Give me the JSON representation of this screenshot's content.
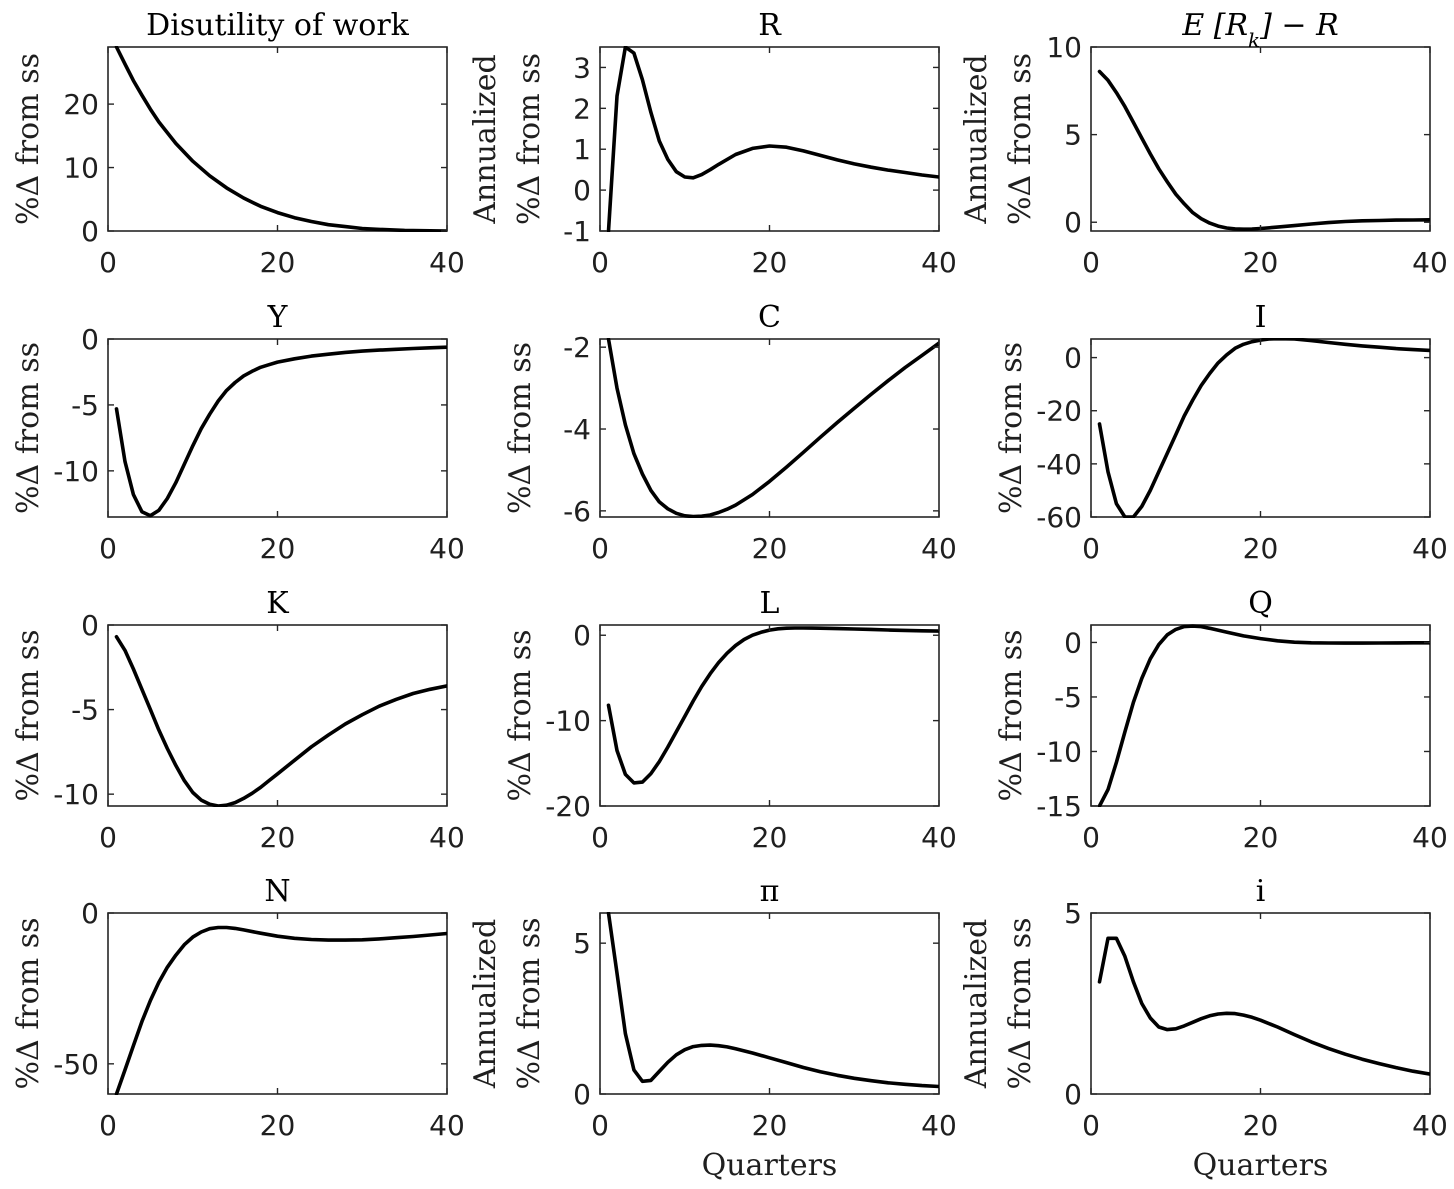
{
  "chart_data": [
    {
      "type": "line",
      "title": "Disutility of work",
      "ylabel": [
        "%Δ from ss"
      ],
      "xlabel": "",
      "xlim": [
        0,
        40
      ],
      "ylim": [
        0,
        29
      ],
      "xticks": [
        0,
        20,
        40
      ],
      "yticks": [
        0,
        10,
        20
      ],
      "x": [
        1,
        2,
        3,
        4,
        5,
        6,
        8,
        10,
        12,
        14,
        16,
        18,
        20,
        22,
        24,
        26,
        28,
        30,
        32,
        35,
        38,
        40
      ],
      "y": [
        29,
        26.3,
        23.7,
        21.4,
        19.2,
        17.2,
        13.8,
        11.0,
        8.7,
        6.8,
        5.2,
        3.9,
        2.9,
        2.1,
        1.5,
        1.0,
        0.7,
        0.4,
        0.25,
        0.1,
        0.03,
        0.0
      ]
    },
    {
      "type": "line",
      "title": "R",
      "ylabel": [
        "Annualized",
        "%Δ from ss"
      ],
      "xlabel": "",
      "xlim": [
        0,
        40
      ],
      "ylim": [
        -1,
        3.5
      ],
      "xticks": [
        0,
        20,
        40
      ],
      "yticks": [
        -1,
        0,
        1,
        2,
        3
      ],
      "x": [
        1,
        2,
        3,
        4,
        5,
        6,
        7,
        8,
        9,
        10,
        11,
        12,
        13,
        14,
        16,
        18,
        20,
        22,
        24,
        26,
        28,
        30,
        32,
        34,
        36,
        38,
        40
      ],
      "y": [
        -1,
        2.3,
        3.5,
        3.35,
        2.7,
        1.9,
        1.2,
        0.75,
        0.45,
        0.32,
        0.3,
        0.38,
        0.5,
        0.63,
        0.87,
        1.02,
        1.08,
        1.05,
        0.96,
        0.85,
        0.74,
        0.64,
        0.56,
        0.49,
        0.43,
        0.37,
        0.32
      ]
    },
    {
      "type": "line",
      "title": "E[R_k] − R",
      "ylabel": [
        "Annualized",
        "%Δ from ss"
      ],
      "xlabel": "",
      "xlim": [
        0,
        40
      ],
      "ylim": [
        -0.5,
        10
      ],
      "xticks": [
        0,
        20,
        40
      ],
      "yticks": [
        0,
        5,
        10
      ],
      "x": [
        1,
        2,
        3,
        4,
        5,
        6,
        7,
        8,
        9,
        10,
        11,
        12,
        13,
        14,
        15,
        16,
        17,
        18,
        19,
        20,
        22,
        24,
        26,
        28,
        30,
        32,
        34,
        36,
        38,
        40
      ],
      "y": [
        8.6,
        8.1,
        7.4,
        6.6,
        5.7,
        4.8,
        3.9,
        3.05,
        2.3,
        1.6,
        1.05,
        0.55,
        0.2,
        -0.05,
        -0.22,
        -0.33,
        -0.38,
        -0.4,
        -0.39,
        -0.36,
        -0.28,
        -0.19,
        -0.1,
        -0.02,
        0.04,
        0.08,
        0.1,
        0.12,
        0.13,
        0.14
      ]
    },
    {
      "type": "line",
      "title": "Y",
      "ylabel": [
        "%Δ from ss"
      ],
      "xlabel": "",
      "xlim": [
        0,
        40
      ],
      "ylim": [
        -13.5,
        0
      ],
      "xticks": [
        0,
        20,
        40
      ],
      "yticks": [
        -10,
        -5,
        0
      ],
      "x": [
        1,
        2,
        3,
        4,
        5,
        6,
        7,
        8,
        9,
        10,
        11,
        12,
        13,
        14,
        15,
        16,
        17,
        18,
        19,
        20,
        22,
        24,
        26,
        28,
        30,
        32,
        34,
        36,
        38,
        40
      ],
      "y": [
        -5.3,
        -9.3,
        -11.8,
        -13.1,
        -13.4,
        -13.0,
        -12.1,
        -10.9,
        -9.5,
        -8.1,
        -6.8,
        -5.7,
        -4.7,
        -3.9,
        -3.3,
        -2.8,
        -2.45,
        -2.15,
        -1.95,
        -1.75,
        -1.5,
        -1.3,
        -1.15,
        -1.02,
        -0.92,
        -0.84,
        -0.78,
        -0.72,
        -0.67,
        -0.62
      ]
    },
    {
      "type": "line",
      "title": "C",
      "ylabel": [
        "%Δ from ss"
      ],
      "xlabel": "",
      "xlim": [
        0,
        40
      ],
      "ylim": [
        -6.15,
        -1.8
      ],
      "xticks": [
        0,
        20,
        40
      ],
      "yticks": [
        -6,
        -4,
        -2
      ],
      "x": [
        1,
        2,
        3,
        4,
        5,
        6,
        7,
        8,
        9,
        10,
        11,
        12,
        13,
        14,
        15,
        16,
        18,
        20,
        22,
        24,
        26,
        28,
        30,
        32,
        34,
        36,
        38,
        40
      ],
      "y": [
        -1.8,
        -3.0,
        -3.9,
        -4.6,
        -5.1,
        -5.5,
        -5.78,
        -5.95,
        -6.06,
        -6.12,
        -6.14,
        -6.13,
        -6.1,
        -6.04,
        -5.96,
        -5.86,
        -5.6,
        -5.28,
        -4.93,
        -4.57,
        -4.2,
        -3.84,
        -3.49,
        -3.15,
        -2.82,
        -2.5,
        -2.2,
        -1.9
      ]
    },
    {
      "type": "line",
      "title": "I",
      "ylabel": [
        "%Δ from ss"
      ],
      "xlabel": "",
      "xlim": [
        0,
        40
      ],
      "ylim": [
        -60,
        7
      ],
      "xticks": [
        0,
        20,
        40
      ],
      "yticks": [
        -60,
        -40,
        -20,
        0
      ],
      "x": [
        1,
        2,
        3,
        4,
        5,
        6,
        7,
        8,
        9,
        10,
        11,
        12,
        13,
        14,
        15,
        16,
        17,
        18,
        19,
        20,
        21,
        22,
        24,
        26,
        28,
        30,
        32,
        34,
        36,
        38,
        40
      ],
      "y": [
        -25,
        -43,
        -55,
        -60,
        -60,
        -56,
        -50,
        -43,
        -36,
        -29,
        -22,
        -16,
        -10.5,
        -6,
        -2,
        1,
        3.5,
        5,
        6,
        6.6,
        7,
        7.1,
        7,
        6.4,
        5.7,
        5,
        4.4,
        3.9,
        3.4,
        3.0,
        2.7
      ]
    },
    {
      "type": "line",
      "title": "K",
      "ylabel": [
        "%Δ from ss"
      ],
      "xlabel": "",
      "xlim": [
        0,
        40
      ],
      "ylim": [
        -10.7,
        0
      ],
      "xticks": [
        0,
        20,
        40
      ],
      "yticks": [
        -10,
        -5,
        0
      ],
      "x": [
        1,
        2,
        3,
        4,
        5,
        6,
        7,
        8,
        9,
        10,
        11,
        12,
        13,
        14,
        15,
        16,
        17,
        18,
        19,
        20,
        22,
        24,
        26,
        28,
        30,
        32,
        34,
        36,
        38,
        40
      ],
      "y": [
        -0.7,
        -1.5,
        -2.6,
        -3.8,
        -5.0,
        -6.2,
        -7.3,
        -8.3,
        -9.2,
        -9.9,
        -10.35,
        -10.6,
        -10.7,
        -10.65,
        -10.5,
        -10.25,
        -9.95,
        -9.6,
        -9.2,
        -8.8,
        -8.0,
        -7.2,
        -6.5,
        -5.85,
        -5.3,
        -4.8,
        -4.4,
        -4.05,
        -3.8,
        -3.6
      ]
    },
    {
      "type": "line",
      "title": "L",
      "ylabel": [
        "%Δ from ss"
      ],
      "xlabel": "",
      "xlim": [
        0,
        40
      ],
      "ylim": [
        -20,
        1.2
      ],
      "xticks": [
        0,
        20,
        40
      ],
      "yticks": [
        -20,
        -10,
        0
      ],
      "x": [
        1,
        2,
        3,
        4,
        5,
        6,
        7,
        8,
        9,
        10,
        11,
        12,
        13,
        14,
        15,
        16,
        17,
        18,
        19,
        20,
        21,
        22,
        23,
        24,
        25,
        26,
        28,
        30,
        32,
        34,
        36,
        38,
        40
      ],
      "y": [
        -8.2,
        -13.5,
        -16.3,
        -17.3,
        -17.2,
        -16.2,
        -14.8,
        -13.1,
        -11.3,
        -9.5,
        -7.7,
        -6.0,
        -4.5,
        -3.2,
        -2.1,
        -1.2,
        -0.5,
        0,
        0.35,
        0.6,
        0.75,
        0.82,
        0.85,
        0.85,
        0.84,
        0.82,
        0.78,
        0.73,
        0.68,
        0.62,
        0.57,
        0.52,
        0.48
      ]
    },
    {
      "type": "line",
      "title": "Q",
      "ylabel": [
        "%Δ from ss"
      ],
      "xlabel": "",
      "xlim": [
        0,
        40
      ],
      "ylim": [
        -15,
        1.6
      ],
      "xticks": [
        0,
        20,
        40
      ],
      "yticks": [
        -15,
        -10,
        -5,
        0
      ],
      "x": [
        1,
        2,
        3,
        4,
        5,
        6,
        7,
        8,
        9,
        10,
        11,
        12,
        13,
        14,
        16,
        18,
        20,
        22,
        24,
        26,
        28,
        30,
        32,
        34,
        36,
        38,
        40
      ],
      "y": [
        -15,
        -13.5,
        -11,
        -8.2,
        -5.5,
        -3.3,
        -1.5,
        -0.2,
        0.7,
        1.2,
        1.45,
        1.5,
        1.45,
        1.3,
        0.95,
        0.6,
        0.35,
        0.15,
        0.02,
        -0.03,
        -0.05,
        -0.06,
        -0.06,
        -0.05,
        -0.04,
        -0.03,
        -0.03
      ]
    },
    {
      "type": "line",
      "title": "N",
      "ylabel": [
        "%Δ from ss"
      ],
      "xlabel": "",
      "xlim": [
        0,
        40
      ],
      "ylim": [
        -60,
        0
      ],
      "xticks": [
        0,
        20,
        40
      ],
      "yticks": [
        -50,
        0
      ],
      "x": [
        1,
        2,
        3,
        4,
        5,
        6,
        7,
        8,
        9,
        10,
        11,
        12,
        13,
        14,
        15,
        16,
        18,
        20,
        22,
        24,
        26,
        28,
        30,
        32,
        34,
        36,
        38,
        40
      ],
      "y": [
        -60,
        -52,
        -44,
        -36,
        -29,
        -23,
        -18,
        -14,
        -10.5,
        -8,
        -6.3,
        -5.2,
        -4.8,
        -4.8,
        -5.1,
        -5.6,
        -6.7,
        -7.7,
        -8.4,
        -8.8,
        -9.0,
        -9.0,
        -8.9,
        -8.6,
        -8.2,
        -7.8,
        -7.3,
        -6.8
      ]
    },
    {
      "type": "line",
      "title": "π",
      "ylabel": [
        "Annualized",
        "%Δ from ss"
      ],
      "xlabel": "Quarters",
      "xlim": [
        0,
        40
      ],
      "ylim": [
        0,
        6
      ],
      "xticks": [
        0,
        20,
        40
      ],
      "yticks": [
        0,
        5
      ],
      "x": [
        1,
        2,
        3,
        4,
        5,
        6,
        7,
        8,
        9,
        10,
        11,
        12,
        13,
        14,
        15,
        16,
        18,
        20,
        22,
        24,
        26,
        28,
        30,
        32,
        34,
        36,
        38,
        40
      ],
      "y": [
        6.0,
        4.0,
        2.0,
        0.8,
        0.42,
        0.45,
        0.75,
        1.05,
        1.3,
        1.47,
        1.57,
        1.61,
        1.62,
        1.6,
        1.56,
        1.5,
        1.36,
        1.2,
        1.04,
        0.88,
        0.74,
        0.62,
        0.52,
        0.44,
        0.37,
        0.32,
        0.28,
        0.25
      ]
    },
    {
      "type": "line",
      "title": "i",
      "ylabel": [
        "Annualized",
        "%Δ from ss"
      ],
      "xlabel": "Quarters",
      "xlim": [
        0,
        40
      ],
      "ylim": [
        0,
        5
      ],
      "xticks": [
        0,
        20,
        40
      ],
      "yticks": [
        0,
        5
      ],
      "x": [
        1,
        2,
        3,
        4,
        5,
        6,
        7,
        8,
        9,
        10,
        11,
        12,
        13,
        14,
        15,
        16,
        17,
        18,
        19,
        20,
        22,
        24,
        26,
        28,
        30,
        32,
        34,
        36,
        38,
        40
      ],
      "y": [
        3.1,
        4.3,
        4.3,
        3.8,
        3.1,
        2.5,
        2.1,
        1.85,
        1.78,
        1.8,
        1.88,
        1.98,
        2.08,
        2.16,
        2.21,
        2.23,
        2.22,
        2.18,
        2.12,
        2.04,
        1.85,
        1.64,
        1.44,
        1.26,
        1.1,
        0.96,
        0.84,
        0.73,
        0.63,
        0.55
      ]
    }
  ]
}
